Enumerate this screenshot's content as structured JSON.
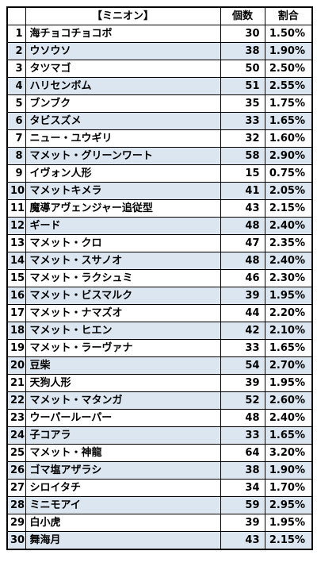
{
  "header": {
    "index": "",
    "name": "【ミニオン】",
    "count": "個数",
    "ratio": "割合"
  },
  "colors": {
    "row_alt": "#dce6f1",
    "row_plain": "#ffffff",
    "grid": "#000000"
  },
  "rows": [
    {
      "no": "1",
      "name": "海チョコチョコボ",
      "count": "30",
      "ratio": "1.50%"
    },
    {
      "no": "2",
      "name": "ウソウソ",
      "count": "38",
      "ratio": "1.90%"
    },
    {
      "no": "3",
      "name": "タツマゴ",
      "count": "50",
      "ratio": "2.50%"
    },
    {
      "no": "4",
      "name": "ハリセンボム",
      "count": "51",
      "ratio": "2.55%"
    },
    {
      "no": "5",
      "name": "ブンブク",
      "count": "35",
      "ratio": "1.75%"
    },
    {
      "no": "6",
      "name": "タビスズメ",
      "count": "33",
      "ratio": "1.65%"
    },
    {
      "no": "7",
      "name": "ニュー・ユウギリ",
      "count": "32",
      "ratio": "1.60%"
    },
    {
      "no": "8",
      "name": "マメット・グリーンワート",
      "count": "58",
      "ratio": "2.90%"
    },
    {
      "no": "9",
      "name": "イヴォン人形",
      "count": "15",
      "ratio": "0.75%"
    },
    {
      "no": "10",
      "name": "マメットキメラ",
      "count": "41",
      "ratio": "2.05%"
    },
    {
      "no": "11",
      "name": "魔導アヴェンジャー追従型",
      "count": "43",
      "ratio": "2.15%"
    },
    {
      "no": "12",
      "name": "ギード",
      "count": "48",
      "ratio": "2.40%"
    },
    {
      "no": "13",
      "name": "マメット・クロ",
      "count": "47",
      "ratio": "2.35%"
    },
    {
      "no": "14",
      "name": "マメット・スサノオ",
      "count": "48",
      "ratio": "2.40%"
    },
    {
      "no": "15",
      "name": "マメット・ラクシュミ",
      "count": "46",
      "ratio": "2.30%"
    },
    {
      "no": "16",
      "name": "マメット・ビスマルク",
      "count": "39",
      "ratio": "1.95%"
    },
    {
      "no": "17",
      "name": "マメット・ナマズオ",
      "count": "44",
      "ratio": "2.20%"
    },
    {
      "no": "18",
      "name": "マメット・ヒエン",
      "count": "42",
      "ratio": "2.10%"
    },
    {
      "no": "19",
      "name": "マメット・ラーヴァナ",
      "count": "33",
      "ratio": "1.65%"
    },
    {
      "no": "20",
      "name": "豆柴",
      "count": "54",
      "ratio": "2.70%"
    },
    {
      "no": "21",
      "name": "天狗人形",
      "count": "39",
      "ratio": "1.95%"
    },
    {
      "no": "22",
      "name": "マメット・マタンガ",
      "count": "52",
      "ratio": "2.60%"
    },
    {
      "no": "23",
      "name": "ウーパールーパー",
      "count": "48",
      "ratio": "2.40%"
    },
    {
      "no": "24",
      "name": "子コアラ",
      "count": "33",
      "ratio": "1.65%"
    },
    {
      "no": "25",
      "name": "マメット・神龍",
      "count": "64",
      "ratio": "3.20%"
    },
    {
      "no": "26",
      "name": "ゴマ塩アザラシ",
      "count": "38",
      "ratio": "1.90%"
    },
    {
      "no": "27",
      "name": "シロイタチ",
      "count": "34",
      "ratio": "1.70%"
    },
    {
      "no": "28",
      "name": "ミニモアイ",
      "count": "59",
      "ratio": "2.95%"
    },
    {
      "no": "29",
      "name": "白小虎",
      "count": "39",
      "ratio": "1.95%"
    },
    {
      "no": "30",
      "name": "舞海月",
      "count": "43",
      "ratio": "2.15%"
    }
  ]
}
